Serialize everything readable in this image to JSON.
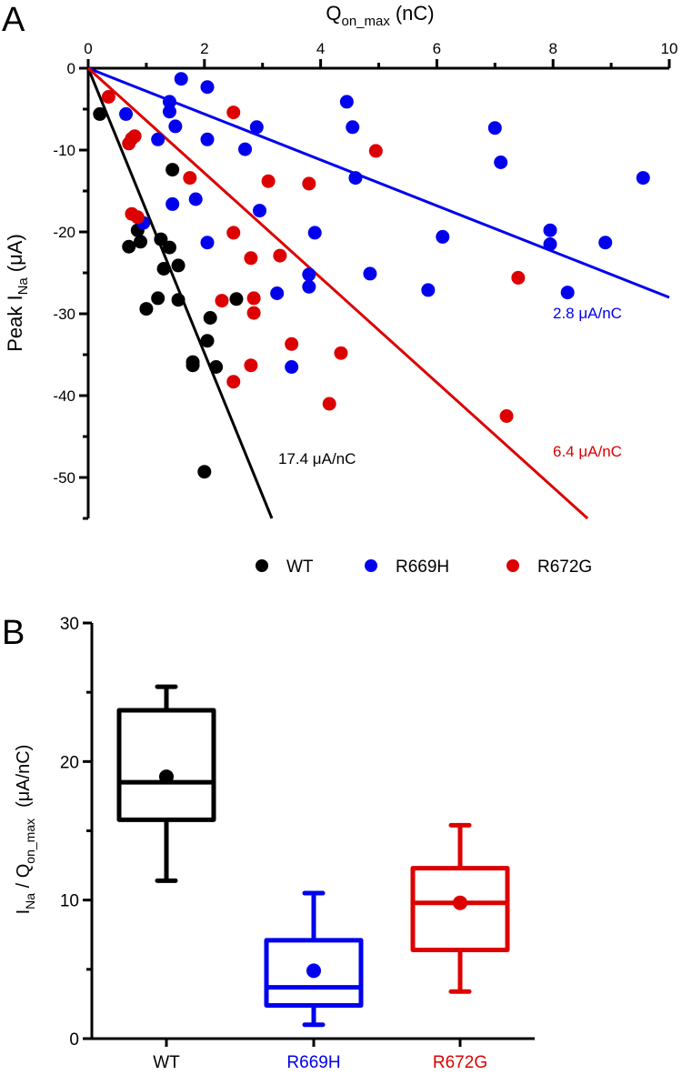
{
  "colors": {
    "WT": "#000000",
    "R669H": "#0000ee",
    "R672G": "#dd0000"
  },
  "chart_data": [
    {
      "panel_label": "A",
      "type": "scatter",
      "title": "",
      "xlabel_main": "Q",
      "xlabel_sub": "on_max",
      "xlabel_unit": "(nC)",
      "ylabel_main": "Peak I",
      "ylabel_sub": "Na",
      "ylabel_unit": "(μA)",
      "xlim": [
        0,
        10
      ],
      "ylim": [
        -55,
        0
      ],
      "x_axis_position": "top",
      "xticks": [
        0,
        2,
        4,
        6,
        8,
        10
      ],
      "xtick_labels": [
        "0",
        "2",
        "4",
        "6",
        "8",
        "10"
      ],
      "x_minor_ticks": [
        1,
        3,
        5,
        7,
        9
      ],
      "yticks": [
        0,
        -10,
        -20,
        -30,
        -40,
        -50
      ],
      "ytick_labels": [
        "0",
        "-10",
        "-20",
        "-30",
        "-40",
        "-50"
      ],
      "y_minor_ticks": [
        -5,
        -15,
        -25,
        -35,
        -45,
        -55
      ],
      "grid": false,
      "legend": {
        "placement": "bottom-center",
        "entries": [
          "WT",
          "R669H",
          "R672G"
        ]
      },
      "series": [
        {
          "name": "WT",
          "points": [
            [
              0.2,
              -5.6
            ],
            [
              0.7,
              -21.8
            ],
            [
              0.85,
              -19.8
            ],
            [
              0.9,
              -21.2
            ],
            [
              1.0,
              -29.4
            ],
            [
              1.2,
              -28.1
            ],
            [
              1.25,
              -20.9
            ],
            [
              1.3,
              -24.5
            ],
            [
              1.4,
              -21.9
            ],
            [
              1.45,
              -12.4
            ],
            [
              1.55,
              -24.1
            ],
            [
              1.55,
              -28.3
            ],
            [
              1.8,
              -35.9
            ],
            [
              1.8,
              -36.3
            ],
            [
              2.05,
              -33.3
            ],
            [
              2.1,
              -30.5
            ],
            [
              2.2,
              -36.5
            ],
            [
              2.55,
              -28.2
            ],
            [
              2.0,
              -49.3
            ]
          ]
        },
        {
          "name": "R669H",
          "points": [
            [
              0.65,
              -5.6
            ],
            [
              0.95,
              -18.9
            ],
            [
              1.2,
              -8.7
            ],
            [
              1.4,
              -4.1
            ],
            [
              1.4,
              -5.3
            ],
            [
              1.45,
              -16.6
            ],
            [
              1.5,
              -7.1
            ],
            [
              1.6,
              -1.3
            ],
            [
              1.85,
              -16.0
            ],
            [
              2.05,
              -2.3
            ],
            [
              2.05,
              -8.7
            ],
            [
              2.05,
              -21.3
            ],
            [
              2.7,
              -9.9
            ],
            [
              2.9,
              -7.2
            ],
            [
              2.95,
              -17.4
            ],
            [
              3.25,
              -27.5
            ],
            [
              3.5,
              -36.5
            ],
            [
              3.8,
              -25.2
            ],
            [
              3.8,
              -26.7
            ],
            [
              3.9,
              -20.1
            ],
            [
              4.45,
              -4.1
            ],
            [
              4.55,
              -7.2
            ],
            [
              4.6,
              -13.4
            ],
            [
              4.85,
              -25.1
            ],
            [
              5.85,
              -27.1
            ],
            [
              6.1,
              -20.6
            ],
            [
              7.0,
              -7.3
            ],
            [
              7.1,
              -11.5
            ],
            [
              7.95,
              -19.8
            ],
            [
              7.95,
              -21.5
            ],
            [
              8.9,
              -21.3
            ],
            [
              8.25,
              -27.4
            ],
            [
              9.55,
              -13.4
            ]
          ]
        },
        {
          "name": "R672G",
          "points": [
            [
              0.35,
              -3.5
            ],
            [
              0.7,
              -9.2
            ],
            [
              0.75,
              -8.6
            ],
            [
              0.8,
              -8.3
            ],
            [
              0.75,
              -17.8
            ],
            [
              0.85,
              -18.2
            ],
            [
              1.75,
              -13.4
            ],
            [
              2.3,
              -28.4
            ],
            [
              2.5,
              -5.4
            ],
            [
              2.5,
              -20.1
            ],
            [
              2.5,
              -38.3
            ],
            [
              2.8,
              -23.2
            ],
            [
              2.8,
              -36.3
            ],
            [
              2.85,
              -28.1
            ],
            [
              2.85,
              -29.9
            ],
            [
              3.1,
              -13.8
            ],
            [
              3.3,
              -22.9
            ],
            [
              3.5,
              -33.7
            ],
            [
              3.8,
              -14.1
            ],
            [
              4.15,
              -41.0
            ],
            [
              4.35,
              -34.8
            ],
            [
              4.95,
              -10.1
            ],
            [
              7.2,
              -42.5
            ],
            [
              7.4,
              -25.6
            ]
          ]
        }
      ],
      "fits": [
        {
          "name": "WT",
          "slope": -17.4,
          "label": "17.4 μA/nC"
        },
        {
          "name": "R669H",
          "slope": -2.8,
          "label": "2.8 μA/nC"
        },
        {
          "name": "R672G",
          "slope": -6.4,
          "label": "6.4 μA/nC"
        }
      ]
    },
    {
      "panel_label": "B",
      "type": "box",
      "title": "",
      "ylabel_main1": "I",
      "ylabel_sub1": "Na",
      "ylabel_main2": " / Q",
      "ylabel_sub2": "on_max",
      "ylabel_unit": "(μA/nC)",
      "xlabel": "",
      "categories": [
        "WT",
        "R669H",
        "R672G"
      ],
      "ylim": [
        0,
        30
      ],
      "yticks": [
        0,
        10,
        20,
        30
      ],
      "ytick_labels": [
        "0",
        "10",
        "20",
        "30"
      ],
      "y_minor_ticks": [
        5,
        15,
        25
      ],
      "grid": false,
      "boxes": [
        {
          "name": "WT",
          "whisker_low": 11.4,
          "q1": 15.8,
          "median": 18.5,
          "q3": 23.7,
          "whisker_high": 25.4,
          "mean": 18.9
        },
        {
          "name": "R669H",
          "whisker_low": 1.0,
          "q1": 2.4,
          "median": 3.7,
          "q3": 7.1,
          "whisker_high": 10.5,
          "mean": 4.9
        },
        {
          "name": "R672G",
          "whisker_low": 3.4,
          "q1": 6.4,
          "median": 9.8,
          "q3": 12.3,
          "whisker_high": 15.4,
          "mean": 9.8
        }
      ]
    }
  ]
}
